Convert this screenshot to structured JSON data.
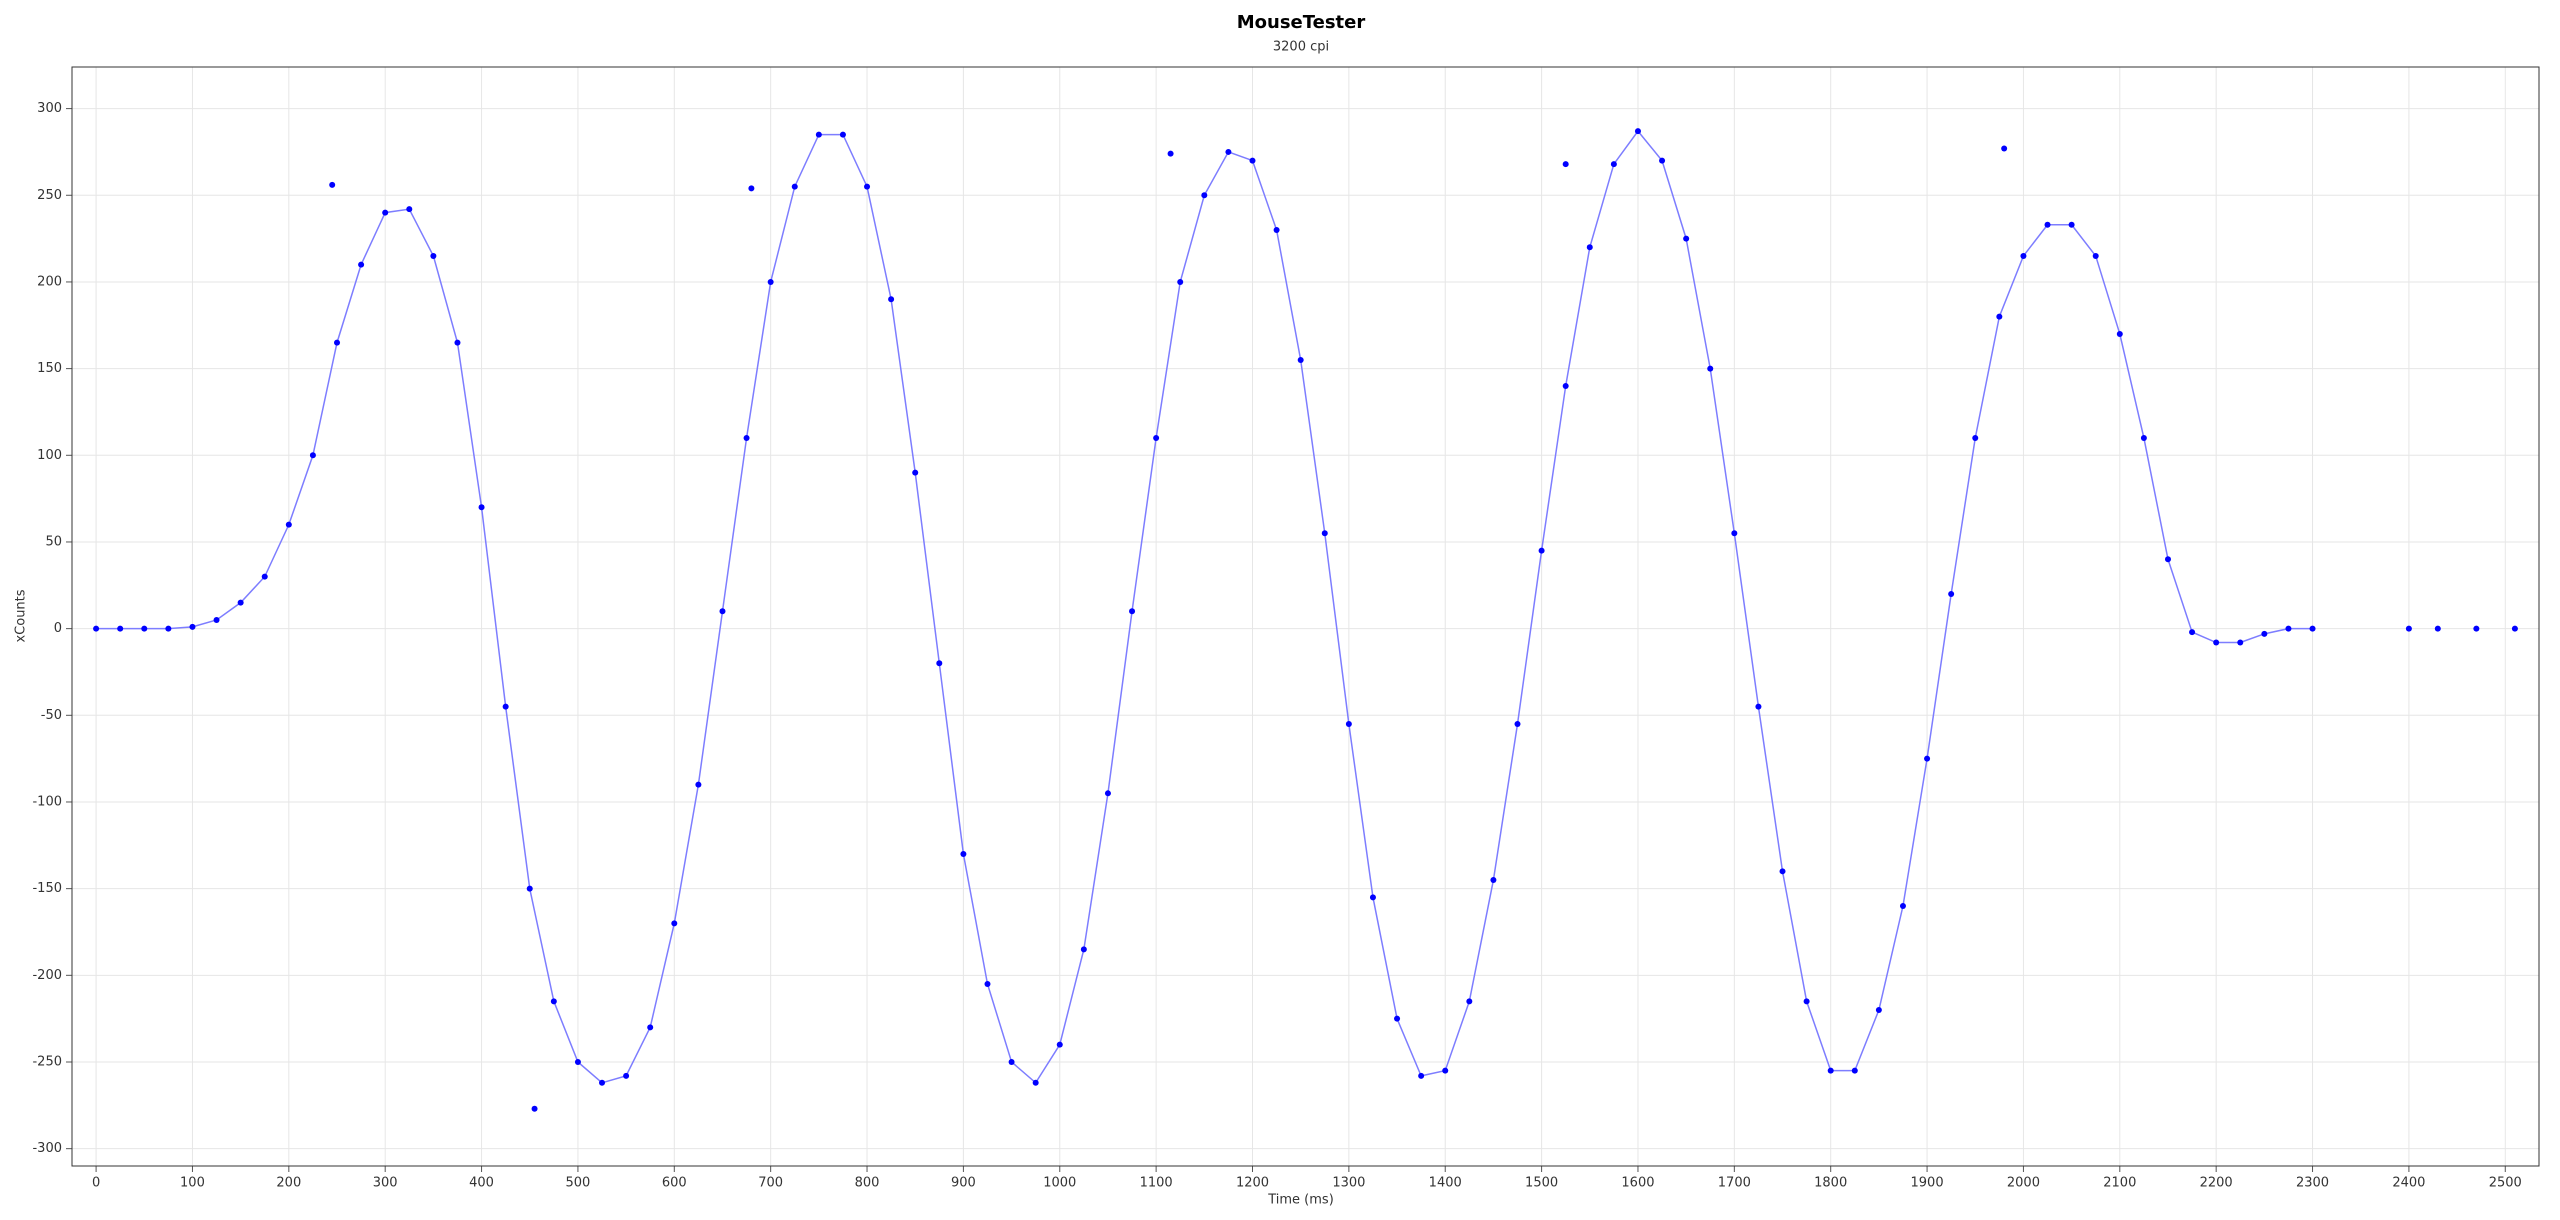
{
  "chart_data": {
    "type": "scatter",
    "title": "MouseTester",
    "subtitle": "3200 cpi",
    "x_label": "Time (ms)",
    "y_label": "xCounts",
    "xlim": [
      -25,
      2535
    ],
    "ylim": [
      -310,
      324
    ],
    "xticks": [
      0,
      100,
      200,
      300,
      400,
      500,
      600,
      700,
      800,
      900,
      1000,
      1100,
      1200,
      1300,
      1400,
      1500,
      1600,
      1700,
      1800,
      1900,
      2000,
      2100,
      2200,
      2300,
      2400,
      2500
    ],
    "yticks": [
      -300,
      -250,
      -200,
      -150,
      -100,
      -50,
      0,
      50,
      100,
      150,
      200,
      250,
      300
    ],
    "grid": true,
    "series": [
      {
        "type": "line",
        "color": "#7d7dff",
        "x": [
          0,
          25,
          50,
          75,
          100,
          125,
          150,
          175,
          200,
          225,
          250,
          275,
          300,
          325,
          350,
          375,
          400,
          425,
          450,
          475,
          500,
          525,
          550,
          575,
          600,
          625,
          650,
          675,
          700,
          725,
          750,
          775,
          800,
          825,
          850,
          875,
          900,
          925,
          950,
          975,
          1000,
          1025,
          1050,
          1075,
          1100,
          1125,
          1150,
          1175,
          1200,
          1225,
          1250,
          1275,
          1300,
          1325,
          1350,
          1375,
          1400,
          1425,
          1450,
          1475,
          1500,
          1525,
          1550,
          1575,
          1600,
          1625,
          1650,
          1675,
          1700,
          1725,
          1750,
          1775,
          1800,
          1825,
          1850,
          1875,
          1900,
          1925,
          1950,
          1975,
          2000,
          2025,
          2050,
          2075,
          2100,
          2125,
          2150,
          2175,
          2200,
          2225,
          2250,
          2275,
          2300
        ],
        "values": [
          0,
          0,
          0,
          0,
          1,
          5,
          15,
          30,
          60,
          100,
          165,
          210,
          240,
          242,
          215,
          165,
          70,
          -45,
          -150,
          -215,
          -250,
          -262,
          -258,
          -230,
          -170,
          -90,
          10,
          110,
          200,
          255,
          285,
          285,
          255,
          190,
          90,
          -20,
          -130,
          -205,
          -250,
          -262,
          -240,
          -185,
          -95,
          10,
          110,
          200,
          250,
          275,
          270,
          230,
          155,
          55,
          -55,
          -155,
          -225,
          -258,
          -255,
          -215,
          -145,
          -55,
          45,
          140,
          220,
          268,
          287,
          270,
          225,
          150,
          55,
          -45,
          -140,
          -215,
          -255,
          -255,
          -220,
          -160,
          -75,
          20,
          110,
          180,
          215,
          233,
          233,
          215,
          170,
          110,
          40,
          -2,
          -8,
          -8,
          -3,
          0,
          0
        ]
      },
      {
        "type": "scatter",
        "color": "#0000ff",
        "x": [
          0,
          25,
          50,
          75,
          100,
          125,
          150,
          175,
          200,
          225,
          250,
          275,
          300,
          325,
          350,
          375,
          400,
          425,
          450,
          475,
          500,
          525,
          550,
          575,
          600,
          625,
          650,
          675,
          700,
          725,
          750,
          775,
          800,
          825,
          850,
          875,
          900,
          925,
          950,
          975,
          1000,
          1025,
          1050,
          1075,
          1100,
          1125,
          1150,
          1175,
          1200,
          1225,
          1250,
          1275,
          1300,
          1325,
          1350,
          1375,
          1400,
          1425,
          1450,
          1475,
          1500,
          1525,
          1550,
          1575,
          1600,
          1625,
          1650,
          1675,
          1700,
          1725,
          1750,
          1775,
          1800,
          1825,
          1850,
          1875,
          1900,
          1925,
          1950,
          1975,
          2000,
          2025,
          2050,
          2075,
          2100,
          2125,
          2150,
          2175,
          2200,
          2225,
          2250,
          2275,
          2300,
          245,
          455,
          680,
          1115,
          1525,
          1980,
          2400,
          2430,
          2470,
          2510
        ],
        "values": [
          0,
          0,
          0,
          0,
          1,
          5,
          15,
          30,
          60,
          100,
          165,
          210,
          240,
          242,
          215,
          165,
          70,
          -45,
          -150,
          -215,
          -250,
          -262,
          -258,
          -230,
          -170,
          -90,
          10,
          110,
          200,
          255,
          285,
          285,
          255,
          190,
          90,
          -20,
          -130,
          -205,
          -250,
          -262,
          -240,
          -185,
          -95,
          10,
          110,
          200,
          250,
          275,
          270,
          230,
          155,
          55,
          -55,
          -155,
          -225,
          -258,
          -255,
          -215,
          -145,
          -55,
          45,
          140,
          220,
          268,
          287,
          270,
          225,
          150,
          55,
          -45,
          -140,
          -215,
          -255,
          -255,
          -220,
          -160,
          -75,
          20,
          110,
          180,
          215,
          233,
          233,
          215,
          170,
          110,
          40,
          -2,
          -8,
          -8,
          -3,
          0,
          0,
          256,
          -277,
          254,
          274,
          268,
          277,
          0,
          0,
          0,
          0
        ]
      }
    ]
  }
}
